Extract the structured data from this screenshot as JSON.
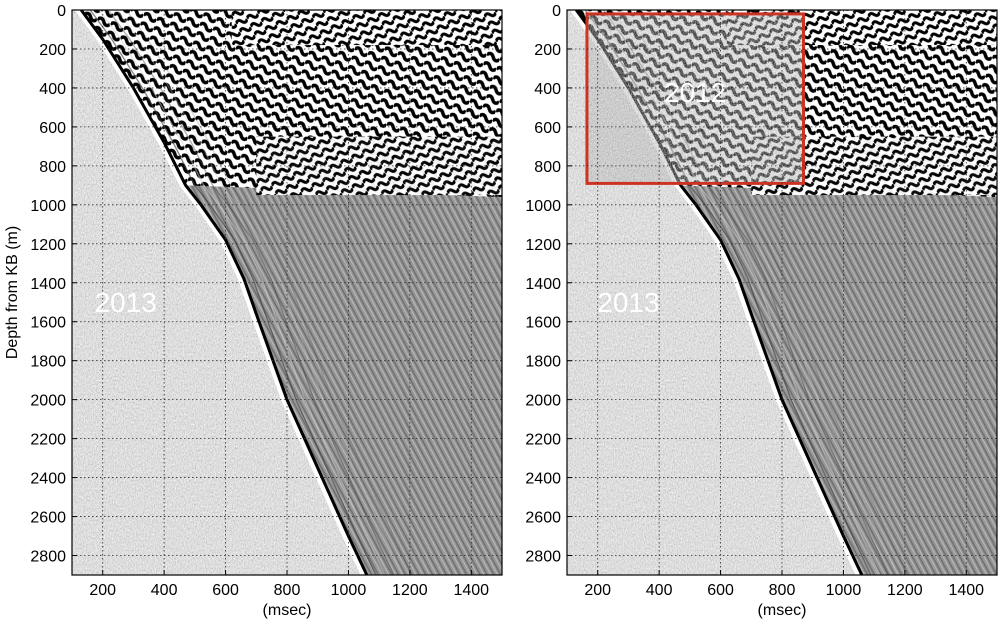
{
  "chart_data": [
    {
      "type": "heatmap",
      "panel": "left",
      "description_type": "VSP seismic wiggle image (grayscale)",
      "title": "",
      "xlabel": "(msec)",
      "ylabel": "Depth from KB (m)",
      "xlim": [
        100,
        1500
      ],
      "ylim": [
        2900,
        0
      ],
      "xticks": [
        200,
        400,
        600,
        800,
        1000,
        1200,
        1400
      ],
      "yticks": [
        0,
        200,
        400,
        600,
        800,
        1000,
        1200,
        1400,
        1600,
        1800,
        2000,
        2200,
        2400,
        2600,
        2800
      ],
      "grid": true,
      "first_break_curve": {
        "x": [
          130,
          200,
          300,
          400,
          470,
          520,
          600,
          660,
          700,
          800,
          900,
          1000,
          1060
        ],
        "y": [
          0,
          150,
          400,
          680,
          900,
          1000,
          1180,
          1380,
          1560,
          2000,
          2350,
          2700,
          2900
        ]
      },
      "annotations": [
        {
          "text": "2013",
          "x": 275,
          "y": 1500
        }
      ]
    },
    {
      "type": "heatmap",
      "panel": "right",
      "description_type": "VSP seismic wiggle image (grayscale)",
      "title": "",
      "xlabel": "(msec)",
      "ylabel": "",
      "xlim": [
        100,
        1500
      ],
      "ylim": [
        2900,
        0
      ],
      "xticks": [
        200,
        400,
        600,
        800,
        1000,
        1200,
        1400
      ],
      "yticks": [
        0,
        200,
        400,
        600,
        800,
        1000,
        1200,
        1400,
        1600,
        1800,
        2000,
        2200,
        2400,
        2600,
        2800
      ],
      "grid": true,
      "first_break_curve": {
        "x": [
          130,
          200,
          300,
          400,
          470,
          520,
          600,
          660,
          700,
          800,
          900,
          1000,
          1060
        ],
        "y": [
          0,
          150,
          400,
          680,
          900,
          1000,
          1180,
          1380,
          1560,
          2000,
          2350,
          2700,
          2900
        ]
      },
      "highlight_box": {
        "x0": 165,
        "x1": 870,
        "y0": 20,
        "y1": 890,
        "color": "#cc3322",
        "label": "2012"
      },
      "annotations": [
        {
          "text": "2013",
          "x": 300,
          "y": 1500
        }
      ]
    }
  ],
  "colors": {
    "background": "#ffffff",
    "noise_gray": "#808080",
    "box_red": "#cc3322",
    "text_white": "#ffffff"
  }
}
